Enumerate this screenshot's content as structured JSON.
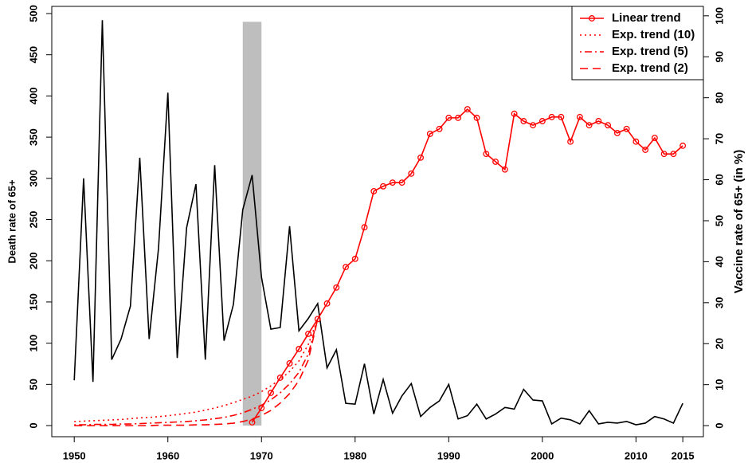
{
  "chart_data": {
    "type": "line",
    "y_label": "Death rate of 65+",
    "y2_label": "Vaccine rate of 65+ (in %)",
    "x": [
      1950,
      1951,
      1952,
      1953,
      1954,
      1955,
      1956,
      1957,
      1958,
      1959,
      1960,
      1961,
      1962,
      1963,
      1964,
      1965,
      1966,
      1967,
      1968,
      1969,
      1970,
      1971,
      1972,
      1973,
      1974,
      1975,
      1976,
      1977,
      1978,
      1979,
      1980,
      1981,
      1982,
      1983,
      1984,
      1985,
      1986,
      1987,
      1988,
      1989,
      1990,
      1991,
      1992,
      1993,
      1994,
      1995,
      1996,
      1997,
      1998,
      1999,
      2000,
      2001,
      2002,
      2003,
      2004,
      2005,
      2006,
      2007,
      2008,
      2009,
      2010,
      2011,
      2012,
      2013,
      2014,
      2015
    ],
    "xlim": [
      1947.6,
      2017.2
    ],
    "xticks": [
      1950,
      1960,
      1970,
      1980,
      1990,
      2000,
      2010,
      2015
    ],
    "ylim": [
      -13.5,
      508.7
    ],
    "yticks": [
      0,
      50,
      100,
      150,
      200,
      250,
      300,
      350,
      400,
      450,
      500
    ],
    "y2lim": [
      -2.7,
      102.3
    ],
    "y2ticks": [
      0,
      10,
      20,
      30,
      40,
      50,
      60,
      70,
      80,
      90,
      100
    ],
    "shaded_region": {
      "x": [
        1968,
        1970
      ],
      "y": [
        0,
        490
      ],
      "color": "#bebebe"
    },
    "legend": "top-right",
    "series": [
      {
        "color": "#000000",
        "style": "solid",
        "axis": "y",
        "values": [
          55,
          300,
          53,
          492,
          80,
          105,
          145,
          325,
          105,
          215,
          404,
          82,
          240,
          293,
          80,
          316,
          103,
          147,
          262,
          304,
          180,
          117,
          119,
          242,
          115,
          130,
          148,
          70,
          92,
          27,
          26,
          75,
          14,
          56,
          15,
          36,
          51,
          11,
          22,
          30,
          50,
          8,
          12,
          26,
          8,
          14,
          22,
          20,
          44,
          31,
          30,
          2,
          9,
          7,
          2,
          18,
          2,
          4,
          3,
          5,
          1,
          3,
          11,
          8,
          3,
          27
        ]
      },
      {
        "name": "Linear trend",
        "color": "#ff0000",
        "style": "solid-points",
        "axis": "y2",
        "values": [
          null,
          null,
          null,
          null,
          null,
          null,
          null,
          null,
          null,
          null,
          null,
          null,
          null,
          null,
          null,
          null,
          null,
          null,
          null,
          0.8,
          4.3,
          8,
          11.7,
          15.2,
          18.7,
          22.4,
          26,
          29.8,
          33.7,
          38.7,
          40.7,
          48.4,
          57.2,
          58.4,
          59.3,
          59.3,
          61.5,
          65.4,
          71.2,
          72.4,
          75.1,
          75.1,
          77.2,
          75.1,
          66.3,
          64.4,
          62.5,
          76.1,
          74.3,
          73.3,
          74.3,
          75.3,
          75.3,
          69.3,
          75.3,
          73.3,
          74.3,
          73.3,
          71.4,
          72.4,
          69.3,
          67.3,
          70.2,
          66.3,
          66.3,
          68.3
        ]
      },
      {
        "name": "Exp. trend (10)",
        "color": "#ff0000",
        "style": "dotted",
        "axis": "y2",
        "values": [
          1.0,
          1.1,
          1.2,
          1.3,
          1.4,
          1.5,
          1.7,
          1.9,
          2.0,
          2.2,
          2.4,
          2.7,
          3.0,
          3.3,
          3.8,
          4.3,
          4.9,
          5.6,
          6.4,
          7.2,
          8.3,
          9.7,
          11.3,
          13.2,
          15.8,
          19.8,
          26,
          null,
          null,
          null,
          null,
          null,
          null,
          null,
          null,
          null,
          null,
          null,
          null,
          null,
          null,
          null,
          null,
          null,
          null,
          null,
          null,
          null,
          null,
          null,
          null,
          null,
          null,
          null,
          null,
          null,
          null,
          null,
          null,
          null,
          null,
          null,
          null,
          null,
          null,
          null
        ]
      },
      {
        "name": "Exp. trend (5)",
        "color": "#ff0000",
        "style": "dotdash",
        "axis": "y2",
        "values": [
          0.2,
          0.2,
          0.3,
          0.3,
          0.3,
          0.4,
          0.4,
          0.5,
          0.6,
          0.7,
          0.8,
          0.9,
          1.0,
          1.2,
          1.4,
          1.7,
          2.0,
          2.5,
          3.1,
          4.0,
          5.0,
          6.3,
          8.0,
          10.2,
          13.0,
          17.5,
          26,
          null,
          null,
          null,
          null,
          null,
          null,
          null,
          null,
          null,
          null,
          null,
          null,
          null,
          null,
          null,
          null,
          null,
          null,
          null,
          null,
          null,
          null,
          null,
          null,
          null,
          null,
          null,
          null,
          null,
          null,
          null,
          null,
          null,
          null,
          null,
          null,
          null,
          null,
          null
        ]
      },
      {
        "name": "Exp. trend (2)",
        "color": "#ff0000",
        "style": "dashed",
        "axis": "y2",
        "values": [
          0,
          0,
          0,
          0,
          0,
          0,
          0,
          0,
          0,
          0.1,
          0.1,
          0.1,
          0.1,
          0.2,
          0.2,
          0.3,
          0.4,
          0.6,
          1.0,
          1.6,
          2.5,
          3.7,
          5.5,
          7.8,
          11,
          16,
          26,
          null,
          null,
          null,
          null,
          null,
          null,
          null,
          null,
          null,
          null,
          null,
          null,
          null,
          null,
          null,
          null,
          null,
          null,
          null,
          null,
          null,
          null,
          null,
          null,
          null,
          null,
          null,
          null,
          null,
          null,
          null,
          null,
          null,
          null,
          null,
          null,
          null,
          null,
          null
        ]
      }
    ]
  }
}
